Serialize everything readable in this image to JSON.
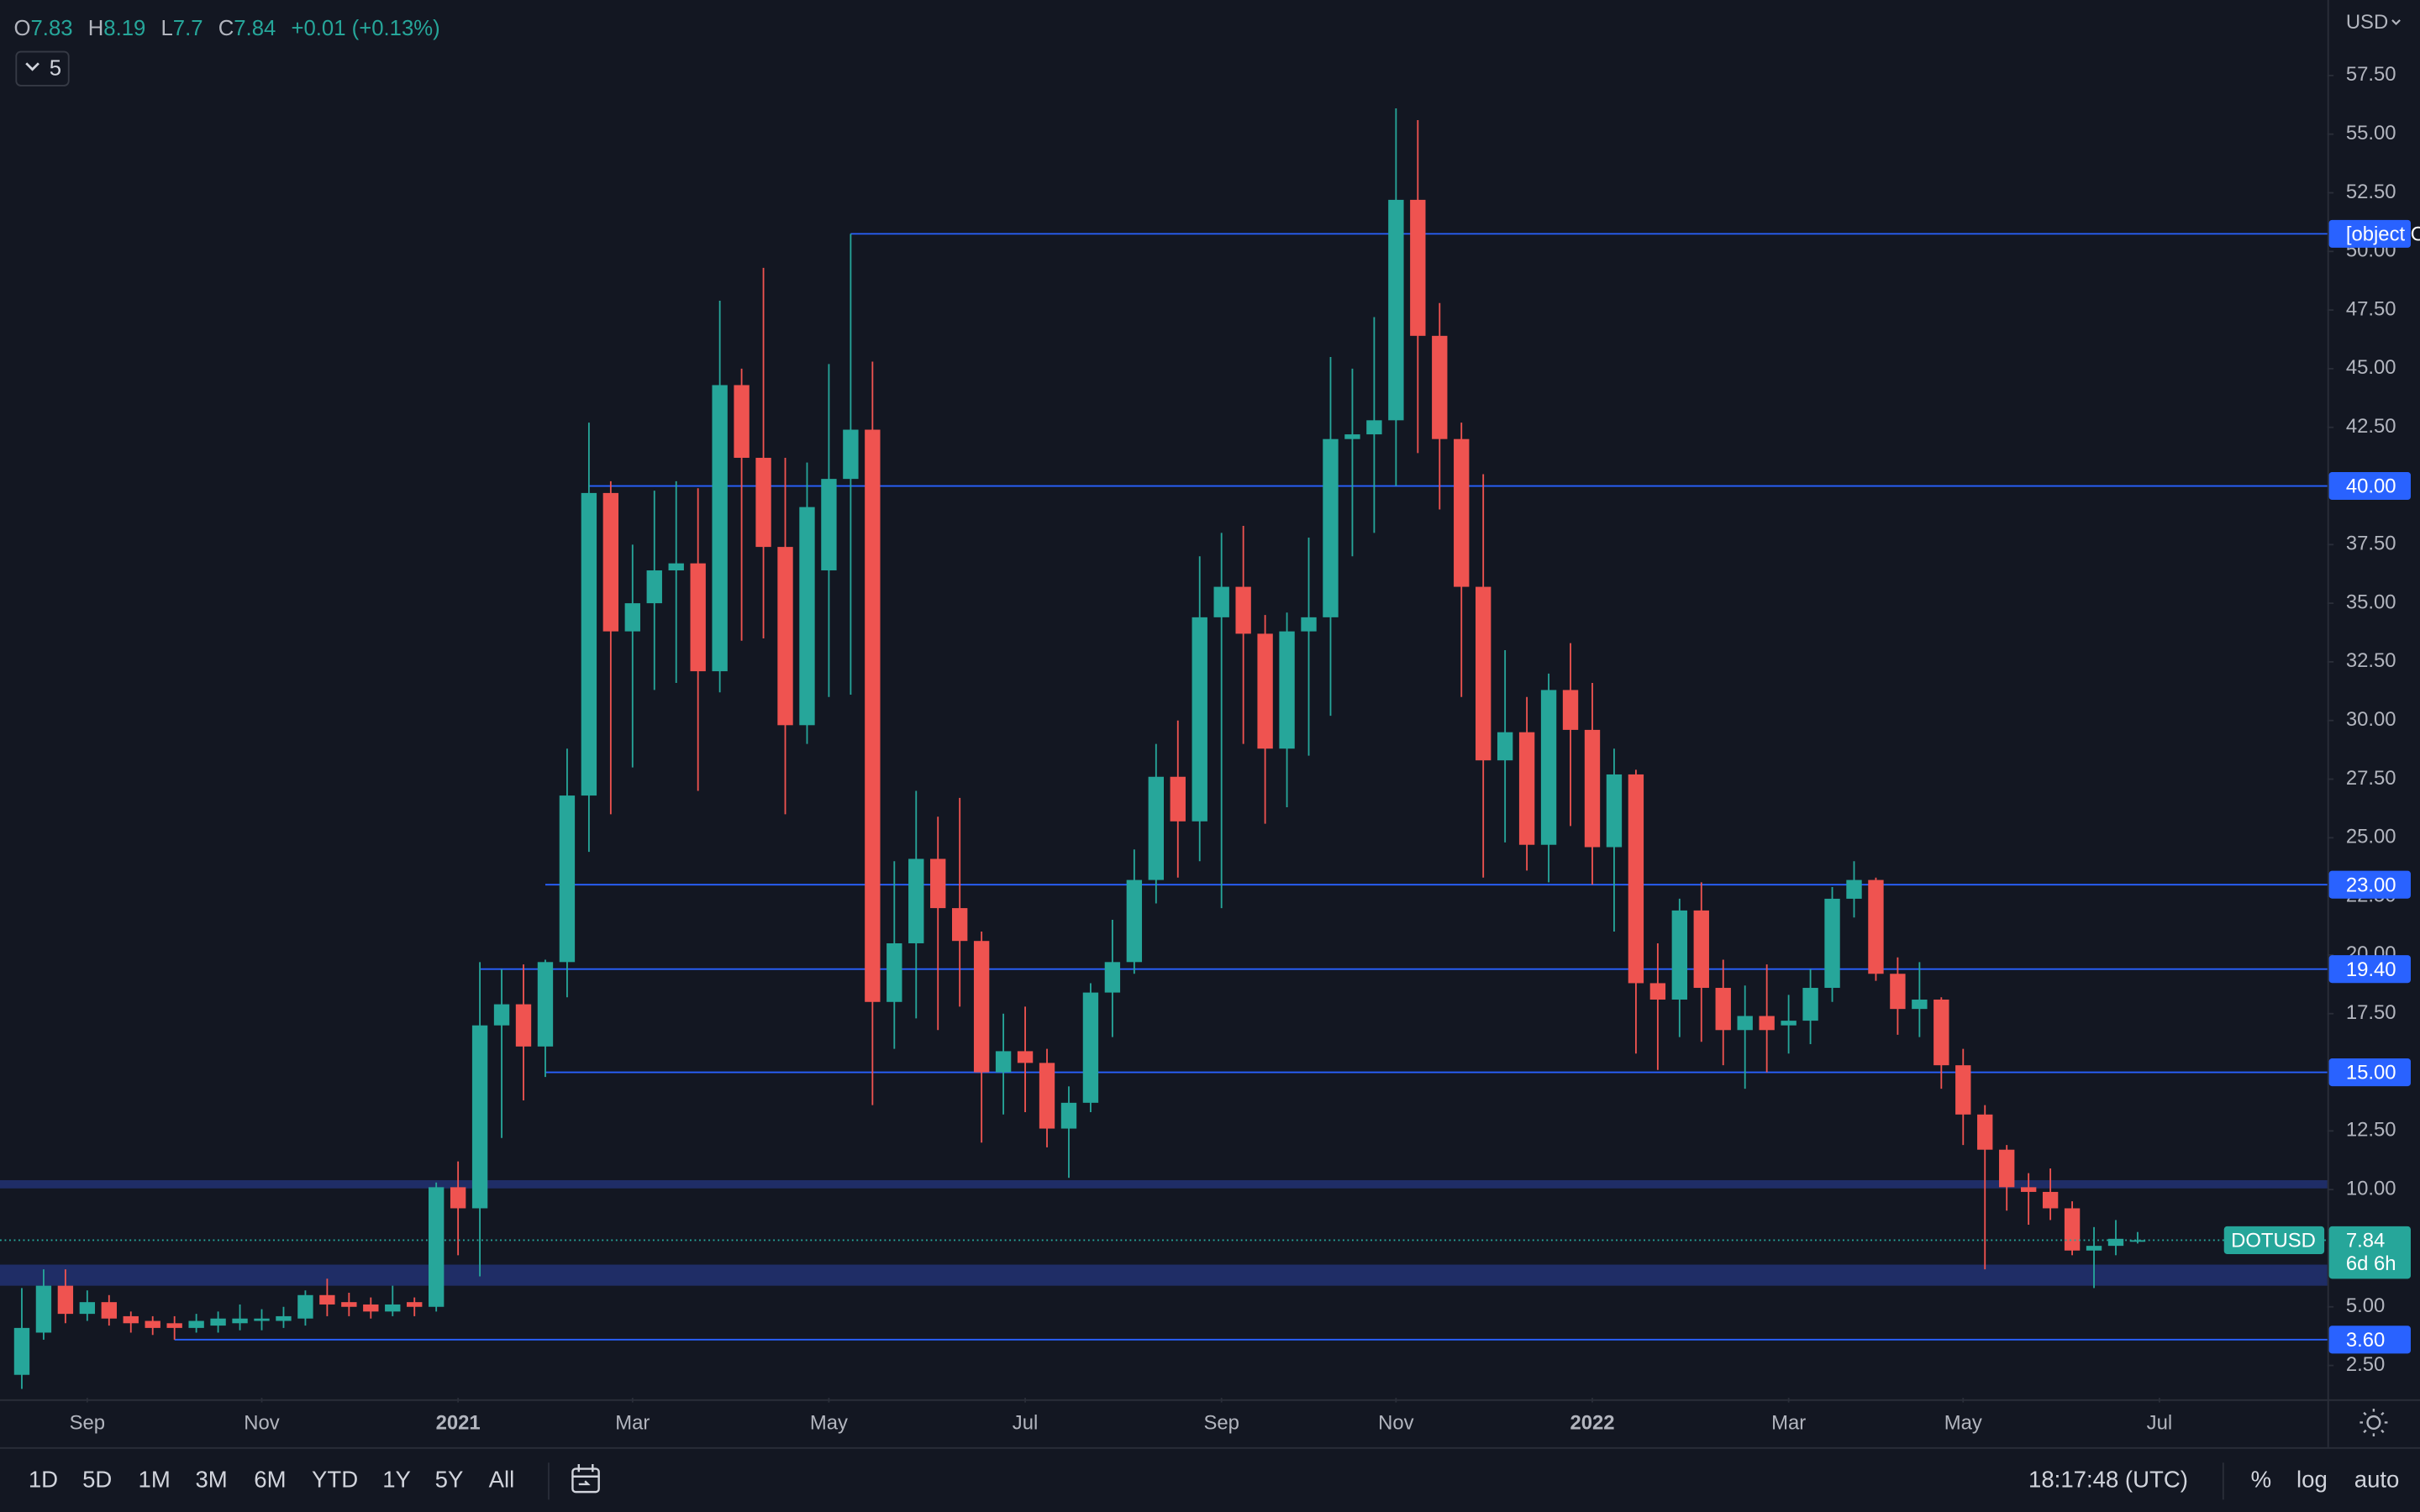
{
  "chart_data": {
    "type": "candlestick",
    "series": [
      {
        "name": "DOTUSD",
        "up_color": "#26a69a",
        "down_color": "#ef5350",
        "open": [
          2.1,
          3.9,
          5.9,
          4.7,
          5.2,
          4.6,
          4.4,
          4.3,
          4.1,
          4.2,
          4.3,
          4.4,
          4.4,
          4.5,
          5.5,
          5.2,
          5.1,
          4.8,
          5.2,
          5.0,
          10.1,
          9.2,
          17.0,
          17.9,
          16.1,
          19.7,
          26.8,
          39.7,
          33.8,
          35.0,
          36.4,
          36.7,
          32.1,
          44.3,
          41.2,
          37.4,
          29.8,
          36.4,
          40.3,
          42.4,
          18.0,
          20.5,
          24.1,
          22.0,
          20.6,
          15.0,
          15.9,
          15.4,
          12.6,
          13.7,
          18.4,
          19.7,
          23.2,
          27.6,
          25.7,
          34.4,
          35.7,
          33.7,
          28.8,
          33.8,
          34.4,
          42.0,
          42.2,
          42.8,
          52.2,
          46.4,
          42.0,
          35.7,
          28.3,
          29.5,
          24.7,
          31.3,
          29.6,
          24.6,
          27.7,
          18.8,
          18.1,
          21.9,
          18.6,
          16.8,
          17.4,
          17.0,
          17.2,
          18.6,
          22.4,
          23.2,
          19.2,
          17.7,
          18.1,
          15.3,
          13.2,
          11.7,
          10.1,
          9.9,
          9.2,
          7.4,
          7.6,
          7.83
        ],
        "high": [
          5.8,
          6.6,
          6.6,
          5.7,
          5.5,
          4.8,
          4.6,
          4.6,
          4.7,
          4.8,
          5.1,
          4.9,
          5.0,
          5.7,
          6.2,
          5.6,
          5.4,
          5.9,
          5.4,
          10.3,
          11.2,
          19.7,
          19.4,
          19.6,
          19.8,
          28.8,
          42.7,
          40.2,
          37.5,
          39.8,
          40.2,
          39.9,
          47.9,
          45.0,
          49.3,
          41.2,
          41.0,
          45.2,
          50.75,
          45.3,
          24.0,
          27.0,
          25.9,
          26.7,
          21.0,
          17.5,
          17.8,
          16.0,
          14.4,
          18.8,
          21.5,
          24.5,
          29.0,
          30.0,
          37.0,
          38.0,
          38.3,
          34.5,
          34.6,
          37.8,
          45.5,
          45.0,
          47.2,
          56.1,
          55.6,
          47.8,
          42.7,
          40.5,
          33.0,
          31.0,
          32.0,
          33.3,
          31.6,
          28.8,
          27.9,
          20.5,
          22.4,
          23.1,
          19.8,
          18.7,
          19.6,
          18.3,
          19.4,
          22.9,
          24.0,
          23.3,
          19.9,
          19.7,
          18.2,
          16.0,
          13.6,
          11.9,
          10.7,
          10.9,
          9.5,
          8.4,
          8.7,
          8.19
        ],
        "low": [
          1.5,
          3.6,
          4.3,
          4.4,
          4.2,
          3.9,
          3.8,
          3.6,
          3.9,
          3.9,
          4.0,
          4.0,
          4.1,
          4.2,
          4.6,
          4.6,
          4.5,
          4.6,
          4.6,
          4.8,
          7.2,
          6.3,
          12.2,
          13.8,
          14.8,
          18.2,
          24.4,
          26.0,
          28.0,
          31.3,
          31.6,
          27.0,
          31.2,
          33.4,
          33.5,
          26.0,
          29.0,
          31.0,
          31.1,
          13.6,
          16.0,
          17.3,
          16.8,
          17.8,
          12.0,
          13.2,
          13.3,
          11.8,
          10.5,
          13.3,
          16.5,
          19.2,
          22.2,
          23.3,
          24.0,
          22.0,
          29.0,
          25.6,
          26.3,
          28.5,
          30.2,
          37.0,
          38.0,
          40.0,
          41.4,
          39.0,
          31.0,
          23.3,
          24.8,
          23.6,
          23.1,
          25.5,
          23.0,
          21.0,
          15.8,
          15.1,
          16.5,
          16.3,
          15.3,
          14.3,
          15.0,
          15.8,
          16.2,
          18.0,
          21.6,
          18.9,
          16.6,
          16.5,
          14.3,
          11.9,
          6.6,
          9.1,
          8.5,
          8.7,
          7.2,
          5.8,
          7.2,
          7.7
        ],
        "close": [
          4.1,
          5.9,
          4.7,
          5.2,
          4.5,
          4.3,
          4.1,
          4.1,
          4.4,
          4.5,
          4.5,
          4.5,
          4.6,
          5.5,
          5.1,
          5.0,
          4.8,
          5.1,
          5.0,
          10.1,
          9.2,
          17.0,
          17.9,
          16.1,
          19.7,
          26.8,
          39.7,
          33.8,
          35.0,
          36.4,
          36.7,
          32.1,
          44.3,
          41.2,
          37.4,
          29.8,
          39.1,
          40.3,
          42.4,
          18.0,
          20.5,
          24.1,
          22.0,
          20.6,
          15.0,
          15.9,
          15.4,
          12.6,
          13.7,
          18.4,
          19.7,
          23.2,
          27.6,
          25.7,
          34.4,
          35.7,
          33.7,
          28.8,
          33.8,
          34.4,
          42.0,
          42.2,
          42.8,
          52.2,
          46.4,
          42.0,
          35.7,
          28.3,
          29.5,
          24.7,
          31.3,
          29.6,
          24.6,
          27.7,
          18.8,
          18.1,
          21.9,
          18.6,
          16.8,
          17.4,
          16.8,
          17.2,
          18.6,
          22.4,
          23.2,
          19.2,
          17.7,
          18.1,
          15.3,
          13.2,
          11.7,
          10.1,
          9.9,
          9.2,
          7.4,
          7.6,
          7.9,
          7.84
        ]
      }
    ],
    "xlim": [
      -1,
      105.7
    ],
    "xticks": [
      {
        "value": 3,
        "label": "Sep"
      },
      {
        "value": 11,
        "label": "Nov"
      },
      {
        "value": 20,
        "label": "2021",
        "bold": true
      },
      {
        "value": 28,
        "label": "Mar"
      },
      {
        "value": 37,
        "label": "May"
      },
      {
        "value": 46,
        "label": "Jul"
      },
      {
        "value": 55,
        "label": "Sep"
      },
      {
        "value": 63,
        "label": "Nov"
      },
      {
        "value": 72,
        "label": "2022",
        "bold": true
      },
      {
        "value": 81,
        "label": "Mar"
      },
      {
        "value": 89,
        "label": "May"
      },
      {
        "value": 98,
        "label": "Jul"
      }
    ],
    "ylim": [
      1.12,
      60.72
    ],
    "yticks": [
      {
        "value": 2.5,
        "label": "2.50"
      },
      {
        "value": 5,
        "label": "5.00"
      },
      {
        "value": 7.5,
        "label": "7.50"
      },
      {
        "value": 10,
        "label": "10.00"
      },
      {
        "value": 12.5,
        "label": "12.50"
      },
      {
        "value": 15,
        "label": "15.00"
      },
      {
        "value": 17.5,
        "label": "17.50"
      },
      {
        "value": 20,
        "label": "20.00"
      },
      {
        "value": 22.5,
        "label": "22.50"
      },
      {
        "value": 25,
        "label": "25.00"
      },
      {
        "value": 27.5,
        "label": "27.50"
      },
      {
        "value": 30,
        "label": "30.00"
      },
      {
        "value": 32.5,
        "label": "32.50"
      },
      {
        "value": 35,
        "label": "35.00"
      },
      {
        "value": 37.5,
        "label": "37.50"
      },
      {
        "value": 40,
        "label": "40.00"
      },
      {
        "value": 42.5,
        "label": "42.50"
      },
      {
        "value": 45,
        "label": "45.00"
      },
      {
        "value": 47.5,
        "label": "47.50"
      },
      {
        "value": 50,
        "label": "50.00"
      },
      {
        "value": 52.5,
        "label": "52.50"
      },
      {
        "value": 55,
        "label": "55.00"
      },
      {
        "value": 57.5,
        "label": "57.50"
      }
    ],
    "levels": [
      {
        "value": 50.75,
        "start": 38
      },
      {
        "value": 40,
        "label": "40.00",
        "start": 26
      },
      {
        "value": 23,
        "label": "23.00",
        "start": 24
      },
      {
        "value": 19.4,
        "label": "19.40",
        "start": 21
      },
      {
        "value": 15,
        "label": "15.00",
        "start": 24
      },
      {
        "value": 3.6,
        "label": "3.60",
        "start": 7
      }
    ],
    "level_color": "#2962ff",
    "zones": [
      {
        "from": 5.9,
        "to": 6.8
      },
      {
        "from": 10.05,
        "to": 10.4
      }
    ],
    "zone_color": "#1f2d66",
    "countdown": "6d 6h",
    "currency": "USD",
    "interval": "5",
    "header": {
      "open_label": "O",
      "high_label": "H",
      "low_label": "L",
      "close_label": "C",
      "change": "+0.01 (+0.13%)"
    }
  },
  "toolbar": {
    "ranges": [
      "1D",
      "5D",
      "1M",
      "3M",
      "6M",
      "YTD",
      "1Y",
      "5Y",
      "All"
    ],
    "time": "18:17:48 (UTC)",
    "options": [
      "%",
      "log",
      "auto"
    ]
  }
}
